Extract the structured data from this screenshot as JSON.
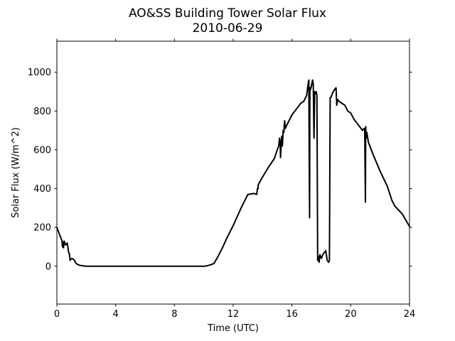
{
  "chart_data": {
    "type": "line",
    "title": "AO&SS Building Tower Solar Flux",
    "subtitle": "2010-06-29",
    "xlabel": "Time (UTC)",
    "ylabel": "Solar Flux (W/m^2)",
    "xlim": [
      0,
      24
    ],
    "ylim": [
      -195,
      1160
    ],
    "xticks": [
      0,
      4,
      8,
      12,
      16,
      20,
      24
    ],
    "xtick_labels": [
      "0",
      "4",
      "8",
      "12",
      "16",
      "20",
      "24"
    ],
    "yticks": [
      0,
      200,
      400,
      600,
      800,
      1000
    ],
    "ytick_labels": [
      "0",
      "200",
      "400",
      "600",
      "800",
      "1000"
    ],
    "grid": false,
    "legend": "none",
    "line_color": "#000000",
    "series": [
      {
        "x": [
          0.0,
          0.2,
          0.35,
          0.38,
          0.42,
          0.45,
          0.5,
          0.55,
          0.6,
          0.65,
          0.7,
          0.75,
          0.8,
          0.85,
          0.9,
          0.95,
          1.0,
          1.1,
          1.2,
          1.3,
          1.4,
          1.5,
          1.6,
          1.8,
          2.0,
          2.2,
          2.5,
          3,
          4,
          5,
          6,
          7,
          8,
          9,
          9.5,
          10.0,
          10.2,
          10.5,
          10.7,
          11.0,
          11.3,
          11.6,
          12.0,
          12.3,
          12.6,
          13.0,
          13.4,
          13.6,
          13.65,
          13.7,
          13.7,
          14.0,
          14.4,
          14.8,
          15.0,
          15.1,
          15.15,
          15.2,
          15.22,
          15.3,
          15.35,
          15.4,
          15.45,
          15.5,
          15.55,
          15.6,
          15.8,
          16.0,
          16.3,
          16.6,
          16.8,
          17.0,
          17.1,
          17.15,
          17.17,
          17.2,
          17.22,
          17.25,
          17.3,
          17.4,
          17.45,
          17.5,
          17.55,
          17.6,
          17.65,
          17.7,
          17.75,
          17.8,
          17.85,
          17.9,
          18.0,
          18.1,
          18.2,
          18.3,
          18.4,
          18.5,
          18.55,
          18.6,
          18.65,
          18.7,
          18.8,
          18.9,
          19.0,
          19.05,
          19.1,
          19.2,
          19.4,
          19.6,
          19.8,
          20.0,
          20.2,
          20.4,
          20.6,
          20.8,
          20.9,
          20.95,
          21.0,
          21.02,
          21.05,
          21.1,
          21.2,
          21.5,
          22.0,
          22.5,
          22.8,
          23.0,
          23.5,
          24.0
        ],
        "y": [
          200,
          160,
          130,
          100,
          125,
          95,
          130,
          115,
          110,
          115,
          120,
          100,
          70,
          65,
          30,
          35,
          40,
          38,
          30,
          15,
          10,
          6,
          4,
          2,
          0,
          0,
          0,
          0,
          0,
          0,
          0,
          0,
          0,
          0,
          0,
          0,
          2,
          8,
          15,
          55,
          100,
          150,
          210,
          260,
          310,
          370,
          375,
          370,
          400,
          400,
          420,
          460,
          510,
          555,
          600,
          620,
          660,
          640,
          560,
          670,
          620,
          700,
          690,
          750,
          710,
          720,
          750,
          780,
          810,
          840,
          850,
          880,
          940,
          960,
          620,
          250,
          920,
          910,
          920,
          960,
          940,
          660,
          900,
          890,
          900,
          880,
          30,
          50,
          20,
          60,
          40,
          60,
          70,
          80,
          30,
          20,
          30,
          870,
          870,
          880,
          900,
          910,
          920,
          830,
          860,
          850,
          840,
          830,
          800,
          790,
          760,
          740,
          720,
          700,
          710,
          710,
          330,
          720,
          660,
          690,
          640,
          580,
          490,
          410,
          340,
          310,
          270,
          205
        ]
      }
    ]
  }
}
